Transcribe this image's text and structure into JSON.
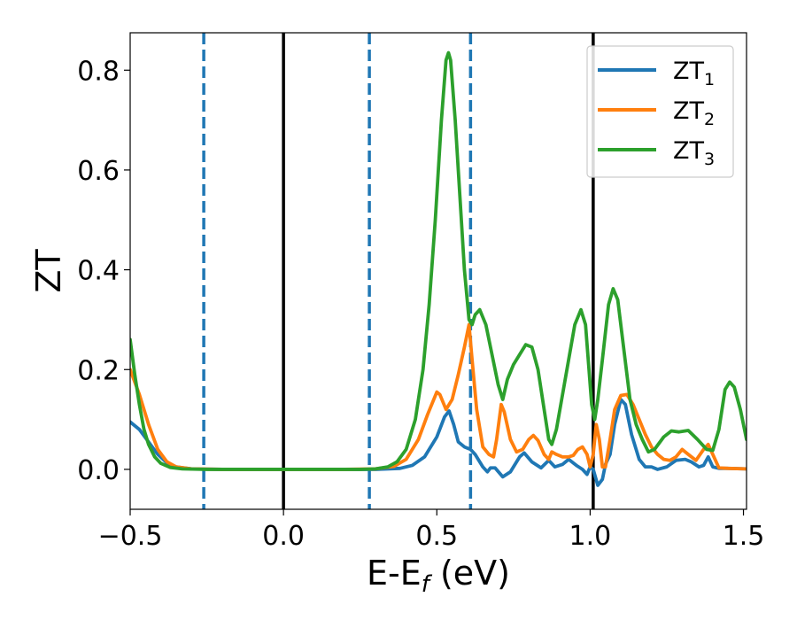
{
  "chart_data": {
    "type": "line",
    "title": "",
    "xlabel": "E-E",
    "xlabel_sub": "f",
    "xlabel_unit": " (eV)",
    "ylabel": "ZT",
    "xlim": [
      -0.5,
      1.51
    ],
    "ylim": [
      -0.08,
      0.875
    ],
    "x_ticks": [
      -0.5,
      0.0,
      0.5,
      1.0,
      1.5
    ],
    "x_tick_labels": [
      "−0.5",
      "0.0",
      "0.5",
      "1.0",
      "1.5"
    ],
    "y_ticks": [
      0.0,
      0.2,
      0.4,
      0.6,
      0.8
    ],
    "y_tick_labels": [
      "0.0",
      "0.2",
      "0.4",
      "0.6",
      "0.8"
    ],
    "grid": false,
    "legend_position": "top-right",
    "vertical_lines": [
      {
        "x": -0.26,
        "style": "dashed",
        "color": "#1f77b4"
      },
      {
        "x": 0.0,
        "style": "solid",
        "color": "#000000"
      },
      {
        "x": 0.28,
        "style": "dashed",
        "color": "#1f77b4"
      },
      {
        "x": 0.61,
        "style": "dashed",
        "color": "#1f77b4"
      },
      {
        "x": 1.01,
        "style": "solid",
        "color": "#000000"
      }
    ],
    "series": [
      {
        "name": "ZT",
        "name_sub": "1",
        "color": "#1f77b4",
        "points": [
          [
            -0.5,
            0.095
          ],
          [
            -0.47,
            0.08
          ],
          [
            -0.44,
            0.055
          ],
          [
            -0.41,
            0.03
          ],
          [
            -0.38,
            0.013
          ],
          [
            -0.35,
            0.005
          ],
          [
            -0.3,
            0.001
          ],
          [
            -0.2,
            0.0
          ],
          [
            0.0,
            0.0
          ],
          [
            0.2,
            0.0
          ],
          [
            0.3,
            0.0
          ],
          [
            0.38,
            0.002
          ],
          [
            0.42,
            0.008
          ],
          [
            0.46,
            0.025
          ],
          [
            0.5,
            0.065
          ],
          [
            0.525,
            0.105
          ],
          [
            0.54,
            0.117
          ],
          [
            0.555,
            0.09
          ],
          [
            0.57,
            0.055
          ],
          [
            0.59,
            0.045
          ],
          [
            0.61,
            0.04
          ],
          [
            0.625,
            0.03
          ],
          [
            0.64,
            0.015
          ],
          [
            0.65,
            0.005
          ],
          [
            0.665,
            -0.005
          ],
          [
            0.675,
            0.003
          ],
          [
            0.69,
            0.003
          ],
          [
            0.715,
            -0.015
          ],
          [
            0.74,
            -0.005
          ],
          [
            0.77,
            0.025
          ],
          [
            0.785,
            0.033
          ],
          [
            0.81,
            0.015
          ],
          [
            0.84,
            0.003
          ],
          [
            0.865,
            0.018
          ],
          [
            0.885,
            0.005
          ],
          [
            0.91,
            0.01
          ],
          [
            0.93,
            0.02
          ],
          [
            0.955,
            0.008
          ],
          [
            0.975,
            0.0
          ],
          [
            0.99,
            -0.01
          ],
          [
            1.0,
            0.005
          ],
          [
            1.01,
            0.0
          ],
          [
            1.025,
            -0.032
          ],
          [
            1.04,
            -0.02
          ],
          [
            1.05,
            0.01
          ],
          [
            1.065,
            0.03
          ],
          [
            1.08,
            0.09
          ],
          [
            1.1,
            0.14
          ],
          [
            1.115,
            0.13
          ],
          [
            1.135,
            0.07
          ],
          [
            1.16,
            0.02
          ],
          [
            1.18,
            0.005
          ],
          [
            1.2,
            0.005
          ],
          [
            1.22,
            0.0
          ],
          [
            1.25,
            0.005
          ],
          [
            1.28,
            0.018
          ],
          [
            1.31,
            0.02
          ],
          [
            1.33,
            0.015
          ],
          [
            1.355,
            0.005
          ],
          [
            1.37,
            0.008
          ],
          [
            1.385,
            0.025
          ],
          [
            1.4,
            0.005
          ],
          [
            1.42,
            0.002
          ],
          [
            1.45,
            0.002
          ],
          [
            1.51,
            0.001
          ]
        ]
      },
      {
        "name": "ZT",
        "name_sub": "2",
        "color": "#ff7f0e",
        "points": [
          [
            -0.5,
            0.2
          ],
          [
            -0.47,
            0.15
          ],
          [
            -0.44,
            0.09
          ],
          [
            -0.41,
            0.04
          ],
          [
            -0.38,
            0.015
          ],
          [
            -0.35,
            0.005
          ],
          [
            -0.3,
            0.001
          ],
          [
            -0.2,
            0.0
          ],
          [
            0.0,
            0.0
          ],
          [
            0.2,
            0.0
          ],
          [
            0.3,
            0.001
          ],
          [
            0.36,
            0.006
          ],
          [
            0.4,
            0.02
          ],
          [
            0.44,
            0.06
          ],
          [
            0.47,
            0.11
          ],
          [
            0.5,
            0.155
          ],
          [
            0.51,
            0.15
          ],
          [
            0.53,
            0.12
          ],
          [
            0.55,
            0.14
          ],
          [
            0.57,
            0.19
          ],
          [
            0.59,
            0.245
          ],
          [
            0.605,
            0.29
          ],
          [
            0.615,
            0.22
          ],
          [
            0.63,
            0.12
          ],
          [
            0.65,
            0.045
          ],
          [
            0.67,
            0.03
          ],
          [
            0.685,
            0.025
          ],
          [
            0.695,
            0.06
          ],
          [
            0.71,
            0.13
          ],
          [
            0.72,
            0.115
          ],
          [
            0.74,
            0.06
          ],
          [
            0.76,
            0.035
          ],
          [
            0.78,
            0.04
          ],
          [
            0.8,
            0.06
          ],
          [
            0.815,
            0.068
          ],
          [
            0.83,
            0.058
          ],
          [
            0.85,
            0.03
          ],
          [
            0.865,
            0.02
          ],
          [
            0.875,
            0.035
          ],
          [
            0.89,
            0.03
          ],
          [
            0.91,
            0.025
          ],
          [
            0.93,
            0.025
          ],
          [
            0.945,
            0.028
          ],
          [
            0.96,
            0.04
          ],
          [
            0.975,
            0.045
          ],
          [
            0.99,
            0.03
          ],
          [
            1.0,
            0.005
          ],
          [
            1.01,
            0.03
          ],
          [
            1.02,
            0.09
          ],
          [
            1.03,
            0.06
          ],
          [
            1.04,
            0.005
          ],
          [
            1.05,
            0.005
          ],
          [
            1.065,
            0.06
          ],
          [
            1.08,
            0.12
          ],
          [
            1.1,
            0.148
          ],
          [
            1.12,
            0.15
          ],
          [
            1.14,
            0.13
          ],
          [
            1.16,
            0.1
          ],
          [
            1.18,
            0.07
          ],
          [
            1.2,
            0.045
          ],
          [
            1.22,
            0.03
          ],
          [
            1.24,
            0.02
          ],
          [
            1.26,
            0.018
          ],
          [
            1.28,
            0.025
          ],
          [
            1.3,
            0.04
          ],
          [
            1.32,
            0.03
          ],
          [
            1.345,
            0.018
          ],
          [
            1.37,
            0.04
          ],
          [
            1.385,
            0.05
          ],
          [
            1.4,
            0.03
          ],
          [
            1.42,
            0.003
          ],
          [
            1.45,
            0.002
          ],
          [
            1.51,
            0.001
          ]
        ]
      },
      {
        "name": "ZT",
        "name_sub": "3",
        "color": "#2ca02c",
        "points": [
          [
            -0.5,
            0.26
          ],
          [
            -0.485,
            0.19
          ],
          [
            -0.47,
            0.13
          ],
          [
            -0.455,
            0.08
          ],
          [
            -0.44,
            0.05
          ],
          [
            -0.42,
            0.025
          ],
          [
            -0.4,
            0.012
          ],
          [
            -0.37,
            0.004
          ],
          [
            -0.33,
            0.001
          ],
          [
            -0.25,
            0.0
          ],
          [
            0.0,
            0.0
          ],
          [
            0.25,
            0.0
          ],
          [
            0.3,
            0.001
          ],
          [
            0.34,
            0.005
          ],
          [
            0.37,
            0.015
          ],
          [
            0.4,
            0.04
          ],
          [
            0.43,
            0.1
          ],
          [
            0.455,
            0.2
          ],
          [
            0.475,
            0.33
          ],
          [
            0.495,
            0.5
          ],
          [
            0.515,
            0.7
          ],
          [
            0.53,
            0.82
          ],
          [
            0.538,
            0.835
          ],
          [
            0.545,
            0.82
          ],
          [
            0.56,
            0.7
          ],
          [
            0.575,
            0.55
          ],
          [
            0.59,
            0.4
          ],
          [
            0.605,
            0.3
          ],
          [
            0.615,
            0.29
          ],
          [
            0.625,
            0.31
          ],
          [
            0.64,
            0.32
          ],
          [
            0.66,
            0.29
          ],
          [
            0.68,
            0.23
          ],
          [
            0.7,
            0.17
          ],
          [
            0.715,
            0.14
          ],
          [
            0.73,
            0.18
          ],
          [
            0.75,
            0.21
          ],
          [
            0.77,
            0.23
          ],
          [
            0.79,
            0.25
          ],
          [
            0.81,
            0.245
          ],
          [
            0.83,
            0.2
          ],
          [
            0.85,
            0.12
          ],
          [
            0.865,
            0.06
          ],
          [
            0.875,
            0.05
          ],
          [
            0.89,
            0.08
          ],
          [
            0.91,
            0.15
          ],
          [
            0.93,
            0.22
          ],
          [
            0.95,
            0.29
          ],
          [
            0.97,
            0.32
          ],
          [
            0.985,
            0.29
          ],
          [
            0.995,
            0.21
          ],
          [
            1.005,
            0.13
          ],
          [
            1.015,
            0.1
          ],
          [
            1.025,
            0.14
          ],
          [
            1.04,
            0.22
          ],
          [
            1.06,
            0.33
          ],
          [
            1.075,
            0.362
          ],
          [
            1.09,
            0.34
          ],
          [
            1.11,
            0.24
          ],
          [
            1.13,
            0.14
          ],
          [
            1.15,
            0.09
          ],
          [
            1.17,
            0.06
          ],
          [
            1.19,
            0.035
          ],
          [
            1.21,
            0.04
          ],
          [
            1.24,
            0.065
          ],
          [
            1.265,
            0.077
          ],
          [
            1.29,
            0.075
          ],
          [
            1.32,
            0.078
          ],
          [
            1.35,
            0.06
          ],
          [
            1.38,
            0.04
          ],
          [
            1.4,
            0.038
          ],
          [
            1.42,
            0.08
          ],
          [
            1.44,
            0.16
          ],
          [
            1.455,
            0.175
          ],
          [
            1.47,
            0.165
          ],
          [
            1.49,
            0.12
          ],
          [
            1.51,
            0.06
          ]
        ]
      }
    ]
  }
}
